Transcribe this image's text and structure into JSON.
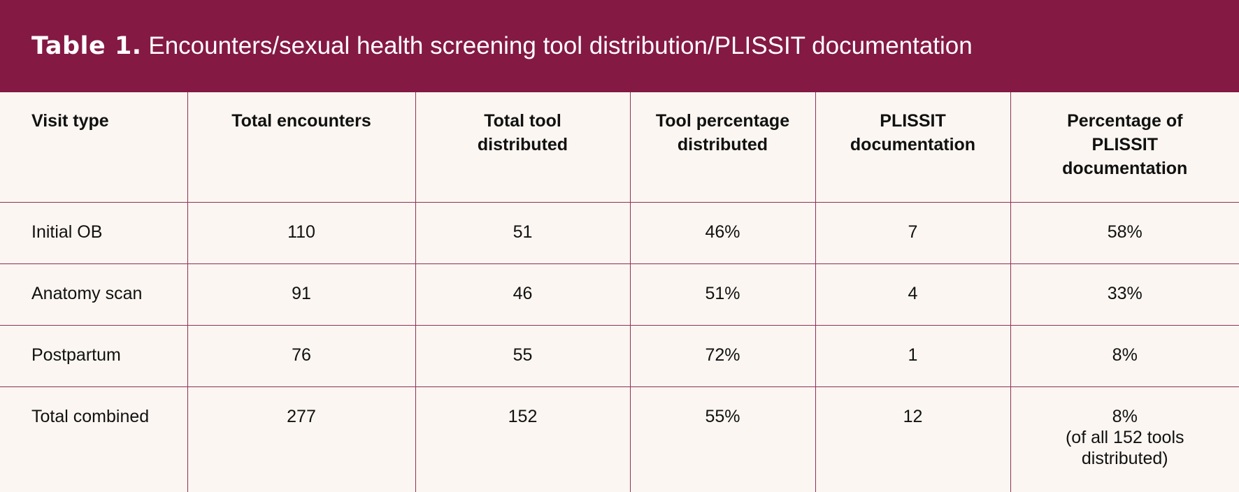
{
  "header": {
    "label": "Table 1.",
    "title": "Encounters/sexual health screening tool distribution/PLISSIT documentation"
  },
  "table": {
    "columns": [
      "Visit type",
      "Total encounters",
      "Total tool distributed",
      "Tool percentage distributed",
      "PLISSIT documentation",
      "Percentage of PLISSIT documentation"
    ],
    "rows": [
      [
        "Initial OB",
        "110",
        "51",
        "46%",
        "7",
        "58%"
      ],
      [
        "Anatomy scan",
        "91",
        "46",
        "51%",
        "4",
        "33%"
      ],
      [
        "Postpartum",
        "76",
        "55",
        "72%",
        "1",
        "8%"
      ],
      [
        "Total combined",
        "277",
        "152",
        "55%",
        "12",
        [
          "8%",
          "(of all 152 tools distributed)"
        ]
      ]
    ]
  }
}
